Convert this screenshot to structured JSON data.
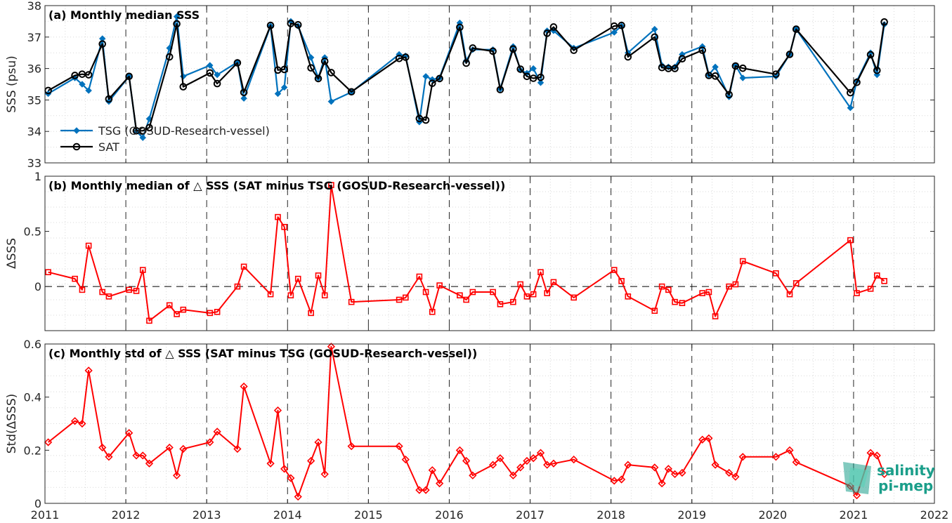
{
  "colors": {
    "tsg": "#0072BD",
    "sat": "#000000",
    "delta": "#FF0000",
    "grid_minor": "#d9d9d9",
    "grid_year": "#262626",
    "logo": "#1a9e8a"
  },
  "logo": {
    "line1": "salinity",
    "line2": "pi-mep"
  },
  "chart_data": [
    {
      "type": "line",
      "title": "(a) Monthly median SSS",
      "ylabel": "SSS (psu)",
      "xlim": [
        2011,
        2022
      ],
      "ylim": [
        33,
        38
      ],
      "yticks": [
        33,
        34,
        35,
        36,
        37,
        38
      ],
      "legend_position": "lower-left",
      "series": [
        {
          "name": "TSG (GOSUD-Research-vessel)",
          "marker": "diamond",
          "x": [
            2011.04,
            2011.37,
            2011.46,
            2011.54,
            2011.71,
            2011.79,
            2012.04,
            2012.13,
            2012.21,
            2012.29,
            2012.54,
            2012.63,
            2012.71,
            2013.04,
            2013.13,
            2013.38,
            2013.46,
            2013.79,
            2013.88,
            2013.96,
            2014.04,
            2014.13,
            2014.29,
            2014.38,
            2014.46,
            2014.54,
            2014.79,
            2015.38,
            2015.46,
            2015.63,
            2015.71,
            2015.79,
            2015.88,
            2016.13,
            2016.21,
            2016.29,
            2016.54,
            2016.63,
            2016.79,
            2016.88,
            2016.96,
            2017.04,
            2017.13,
            2017.21,
            2017.29,
            2017.54,
            2018.04,
            2018.13,
            2018.21,
            2018.54,
            2018.63,
            2018.71,
            2018.79,
            2018.88,
            2019.13,
            2019.21,
            2019.29,
            2019.46,
            2019.54,
            2019.63,
            2020.04,
            2020.21,
            2020.29,
            2020.96,
            2021.04,
            2021.21,
            2021.29,
            2021.38
          ],
          "values": [
            35.2,
            35.7,
            35.5,
            35.3,
            36.95,
            34.95,
            35.75,
            34.0,
            33.8,
            34.4,
            36.65,
            37.65,
            35.75,
            36.1,
            35.8,
            36.2,
            35.05,
            37.35,
            35.2,
            35.4,
            37.5,
            37.35,
            36.35,
            35.7,
            36.35,
            34.95,
            35.25,
            36.45,
            36.4,
            34.3,
            35.75,
            35.65,
            35.7,
            37.45,
            36.25,
            36.6,
            36.6,
            35.35,
            36.7,
            35.95,
            35.85,
            36.0,
            35.55,
            37.2,
            37.2,
            36.65,
            37.15,
            37.35,
            36.5,
            37.25,
            36.1,
            36.05,
            36.05,
            36.45,
            36.7,
            35.8,
            36.05,
            35.1,
            36.1,
            35.7,
            35.75,
            36.45,
            37.25,
            34.75,
            35.6,
            36.5,
            35.8,
            37.4
          ]
        },
        {
          "name": "SAT",
          "marker": "circle",
          "x": [
            2011.04,
            2011.37,
            2011.46,
            2011.54,
            2011.71,
            2011.79,
            2012.04,
            2012.13,
            2012.21,
            2012.29,
            2012.54,
            2012.63,
            2012.71,
            2013.04,
            2013.13,
            2013.38,
            2013.46,
            2013.79,
            2013.88,
            2013.96,
            2014.04,
            2014.13,
            2014.29,
            2014.38,
            2014.46,
            2014.54,
            2014.79,
            2015.38,
            2015.46,
            2015.63,
            2015.71,
            2015.79,
            2015.88,
            2016.13,
            2016.21,
            2016.29,
            2016.54,
            2016.63,
            2016.79,
            2016.88,
            2016.96,
            2017.04,
            2017.13,
            2017.21,
            2017.29,
            2017.54,
            2018.04,
            2018.13,
            2018.21,
            2018.54,
            2018.63,
            2018.71,
            2018.79,
            2018.88,
            2019.13,
            2019.21,
            2019.29,
            2019.46,
            2019.54,
            2019.63,
            2020.04,
            2020.21,
            2020.29,
            2020.96,
            2021.04,
            2021.21,
            2021.29,
            2021.38
          ],
          "values": [
            35.3,
            35.78,
            35.82,
            35.8,
            36.78,
            35.03,
            35.75,
            34.02,
            34.02,
            34.12,
            36.37,
            37.42,
            35.42,
            35.86,
            35.52,
            36.18,
            35.24,
            37.37,
            35.95,
            35.97,
            37.43,
            37.39,
            36.02,
            35.68,
            36.23,
            35.87,
            35.26,
            36.32,
            36.36,
            34.41,
            34.36,
            35.53,
            35.68,
            37.31,
            36.17,
            36.65,
            36.55,
            35.33,
            36.62,
            35.98,
            35.75,
            35.69,
            35.72,
            37.12,
            37.32,
            36.58,
            37.35,
            37.37,
            36.37,
            37.0,
            36.03,
            36.0,
            36.0,
            36.31,
            36.58,
            35.78,
            35.76,
            35.17,
            36.08,
            36.01,
            35.82,
            36.45,
            37.25,
            35.23,
            35.56,
            36.44,
            35.94,
            37.48
          ]
        }
      ]
    },
    {
      "type": "line",
      "title": "(b) Monthly median of △ SSS (SAT minus TSG (GOSUD-Research-vessel))",
      "ylabel": "ΔSSS",
      "xlim": [
        2011,
        2022
      ],
      "ylim": [
        -0.4,
        1
      ],
      "yticks": [
        0,
        0.5,
        1
      ],
      "zero_line": true,
      "series": [
        {
          "marker": "square",
          "x": [
            2011.04,
            2011.37,
            2011.46,
            2011.54,
            2011.71,
            2011.79,
            2012.04,
            2012.13,
            2012.21,
            2012.29,
            2012.54,
            2012.63,
            2012.71,
            2013.04,
            2013.13,
            2013.38,
            2013.46,
            2013.79,
            2013.88,
            2013.96,
            2014.04,
            2014.13,
            2014.29,
            2014.38,
            2014.46,
            2014.54,
            2014.79,
            2015.38,
            2015.46,
            2015.63,
            2015.71,
            2015.79,
            2015.88,
            2016.13,
            2016.21,
            2016.29,
            2016.54,
            2016.63,
            2016.79,
            2016.88,
            2016.96,
            2017.04,
            2017.13,
            2017.21,
            2017.29,
            2017.54,
            2018.04,
            2018.13,
            2018.21,
            2018.54,
            2018.63,
            2018.71,
            2018.79,
            2018.88,
            2019.13,
            2019.21,
            2019.29,
            2019.46,
            2019.54,
            2019.63,
            2020.04,
            2020.21,
            2020.29,
            2020.96,
            2021.04,
            2021.21,
            2021.29,
            2021.38
          ],
          "values": [
            0.13,
            0.07,
            -0.03,
            0.37,
            -0.05,
            -0.09,
            -0.03,
            -0.04,
            0.15,
            -0.31,
            -0.17,
            -0.25,
            -0.21,
            -0.24,
            -0.23,
            0.0,
            0.18,
            -0.07,
            0.63,
            0.54,
            -0.08,
            0.07,
            -0.24,
            0.1,
            -0.08,
            0.92,
            -0.14,
            -0.12,
            -0.1,
            0.09,
            -0.05,
            -0.23,
            0.01,
            -0.08,
            -0.12,
            -0.05,
            -0.05,
            -0.16,
            -0.14,
            0.02,
            -0.09,
            -0.07,
            0.13,
            -0.06,
            0.04,
            -0.1,
            0.15,
            0.05,
            -0.09,
            -0.22,
            0.0,
            -0.03,
            -0.14,
            -0.15,
            -0.06,
            -0.05,
            -0.27,
            0.0,
            0.02,
            0.23,
            0.12,
            -0.07,
            0.03,
            0.42,
            -0.06,
            -0.02,
            0.1,
            0.05
          ]
        }
      ]
    },
    {
      "type": "line",
      "title": "(c) Monthly std of △ SSS (SAT minus TSG (GOSUD-Research-vessel))",
      "ylabel": "Std(ΔSSS)",
      "xlim": [
        2011,
        2022
      ],
      "ylim": [
        0,
        0.6
      ],
      "yticks": [
        0,
        0.2,
        0.4,
        0.6
      ],
      "xticks": [
        "2011",
        "2012",
        "2013",
        "2014",
        "2015",
        "2016",
        "2017",
        "2018",
        "2019",
        "2020",
        "2021",
        "2022"
      ],
      "series": [
        {
          "marker": "diamond",
          "x": [
            2011.04,
            2011.37,
            2011.46,
            2011.54,
            2011.71,
            2011.79,
            2012.04,
            2012.13,
            2012.21,
            2012.29,
            2012.54,
            2012.63,
            2012.71,
            2013.04,
            2013.13,
            2013.38,
            2013.46,
            2013.79,
            2013.88,
            2013.96,
            2014.04,
            2014.13,
            2014.29,
            2014.38,
            2014.46,
            2014.54,
            2014.79,
            2015.38,
            2015.46,
            2015.63,
            2015.71,
            2015.79,
            2015.88,
            2016.13,
            2016.21,
            2016.29,
            2016.54,
            2016.63,
            2016.79,
            2016.88,
            2016.96,
            2017.04,
            2017.13,
            2017.21,
            2017.29,
            2017.54,
            2018.04,
            2018.13,
            2018.21,
            2018.54,
            2018.63,
            2018.71,
            2018.79,
            2018.88,
            2019.13,
            2019.21,
            2019.29,
            2019.46,
            2019.54,
            2019.63,
            2020.04,
            2020.21,
            2020.29,
            2020.96,
            2021.04,
            2021.21,
            2021.29,
            2021.38
          ],
          "values": [
            0.23,
            0.31,
            0.3,
            0.5,
            0.21,
            0.175,
            0.265,
            0.18,
            0.18,
            0.15,
            0.21,
            0.105,
            0.205,
            0.23,
            0.27,
            0.205,
            0.44,
            0.15,
            0.35,
            0.13,
            0.095,
            0.025,
            0.16,
            0.23,
            0.11,
            0.59,
            0.215,
            0.215,
            0.165,
            0.05,
            0.05,
            0.125,
            0.075,
            0.2,
            0.16,
            0.105,
            0.145,
            0.17,
            0.105,
            0.135,
            0.16,
            0.17,
            0.19,
            0.145,
            0.15,
            0.165,
            0.085,
            0.09,
            0.145,
            0.135,
            0.075,
            0.13,
            0.11,
            0.115,
            0.24,
            0.245,
            0.145,
            0.115,
            0.1,
            0.175,
            0.175,
            0.2,
            0.155,
            0.065,
            0.03,
            0.19,
            0.18,
            0.11
          ]
        }
      ]
    }
  ]
}
